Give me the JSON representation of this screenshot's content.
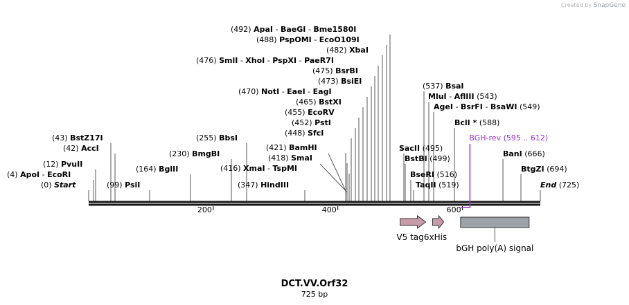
{
  "credit": {
    "created_by": "Created by",
    "brand": "SnapGene"
  },
  "sequence": {
    "name": "DCT.VV.Orf32",
    "length_label": "725 bp",
    "length": 725
  },
  "colors": {
    "backbone": "#1a1a1a",
    "feature_arrow": "#c99aa8",
    "polyA_box": "#9ea3aa",
    "primer": "#9b30d9"
  },
  "ticks": [
    {
      "pos": 200,
      "label": "200"
    },
    {
      "pos": 400,
      "label": "400"
    },
    {
      "pos": 600,
      "label": "600"
    }
  ],
  "sites": [
    {
      "row": 0,
      "parts": [
        {
          "n": "ApaI",
          "p": "(492)"
        },
        {
          "n": "BaeGI"
        },
        {
          "n": "Bme1580I"
        }
      ]
    },
    {
      "row": 1,
      "parts": [
        {
          "n": "PspOMI",
          "p": "(488)"
        },
        {
          "n": "EcoO109I"
        }
      ]
    },
    {
      "row": 2,
      "parts": [
        {
          "n": "XbaI",
          "p": "(482)"
        }
      ]
    },
    {
      "row": 3,
      "parts": [
        {
          "n": "SmlI",
          "p": "(476)"
        },
        {
          "n": "XhoI"
        },
        {
          "n": "PspXI"
        },
        {
          "n": "PaeR7I"
        }
      ]
    },
    {
      "row": 4,
      "parts": [
        {
          "n": "BsrBI",
          "p": "(475)"
        }
      ]
    },
    {
      "row": 5,
      "parts": [
        {
          "n": "BsiEI",
          "p": "(473)"
        }
      ]
    },
    {
      "row": 6,
      "parts": [
        {
          "n": "NotI",
          "p": "(470)"
        },
        {
          "n": "EaeI"
        },
        {
          "n": "EagI"
        }
      ]
    },
    {
      "row": 7,
      "parts": [
        {
          "n": "BstXI",
          "p": "(465)"
        }
      ]
    },
    {
      "row": 8,
      "parts": [
        {
          "n": "EcoRV",
          "p": "(455)"
        }
      ]
    },
    {
      "row": 9,
      "parts": [
        {
          "n": "PstI",
          "p": "(452)"
        }
      ]
    },
    {
      "row": 10,
      "parts": [
        {
          "n": "SfcI",
          "p": "(448)"
        }
      ]
    },
    {
      "row": 11,
      "parts": [
        {
          "n": "BamHI",
          "p": "(421)"
        }
      ]
    },
    {
      "row": 12,
      "parts": [
        {
          "n": "SmaI",
          "p": "(418)"
        }
      ]
    },
    {
      "row": 13,
      "parts": [
        {
          "n": "XmaI",
          "p": "(416)"
        },
        {
          "n": "TspMI"
        }
      ]
    },
    {
      "row": 14,
      "parts": [
        {
          "n": "HindIII",
          "p": "(347)"
        }
      ]
    },
    {
      "row": 15,
      "parts": [
        {
          "n": "BbsI",
          "p": "(255)"
        }
      ]
    },
    {
      "row": 16,
      "parts": [
        {
          "n": "BmgBI",
          "p": "(230)"
        }
      ]
    },
    {
      "row": 17,
      "parts": [
        {
          "n": "BglII",
          "p": "(164)"
        }
      ]
    },
    {
      "row": 18,
      "parts": [
        {
          "n": "PsiI",
          "p": "(99)"
        }
      ]
    },
    {
      "row": 19,
      "parts": [
        {
          "n": "BstZ17I",
          "p": "(43)"
        }
      ]
    },
    {
      "row": 20,
      "parts": [
        {
          "n": "AccI",
          "p": "(42)"
        }
      ]
    },
    {
      "row": 21,
      "parts": [
        {
          "n": "PvuII",
          "p": "(12)"
        }
      ]
    },
    {
      "row": 22,
      "parts": [
        {
          "n": "ApoI",
          "p": "(4)"
        },
        {
          "n": "EcoRI"
        }
      ]
    },
    {
      "row": 23,
      "parts": [
        {
          "n": "Start",
          "p": "(0)"
        }
      ]
    },
    {
      "row": 24,
      "parts": [
        {
          "n": "BsaI",
          "p": "(537)"
        }
      ]
    },
    {
      "row": 25,
      "parts": [
        {
          "n": "MluI",
          "p": ""
        },
        {
          "n": "AflIII"
        },
        {
          "n": "(543)"
        }
      ]
    },
    {
      "row": 26,
      "parts": [
        {
          "n": "AgeI",
          "p": ""
        },
        {
          "n": "BsrFI"
        },
        {
          "n": "BsaWI"
        },
        {
          "n": "(549)"
        }
      ]
    },
    {
      "row": 27,
      "parts": [
        {
          "n": "BclI *",
          "p": ""
        },
        {
          "n": "(588)"
        }
      ]
    },
    {
      "row": 28,
      "parts": [
        {
          "n": "SacII",
          "p": ""
        },
        {
          "n": "(495)"
        }
      ]
    },
    {
      "row": 29,
      "parts": [
        {
          "n": "BstBI",
          "p": ""
        },
        {
          "n": "(499)"
        }
      ]
    },
    {
      "row": 30,
      "parts": [
        {
          "n": "BseRI",
          "p": ""
        },
        {
          "n": "(516)"
        }
      ]
    },
    {
      "row": 31,
      "parts": [
        {
          "n": "TaqII",
          "p": ""
        },
        {
          "n": "(519)"
        }
      ]
    },
    {
      "row": 32,
      "parts": [
        {
          "n": "BanI",
          "p": ""
        },
        {
          "n": "(666)"
        }
      ]
    },
    {
      "row": 33,
      "parts": [
        {
          "n": "BtgZI",
          "p": ""
        },
        {
          "n": "(694)"
        }
      ]
    },
    {
      "row": 34,
      "parts": [
        {
          "n": "End",
          "p": ""
        },
        {
          "n": "(725)"
        }
      ]
    }
  ],
  "features": [
    {
      "name": "V5 tag",
      "start": 500,
      "end": 541
    },
    {
      "name": "6xHis",
      "start": 552,
      "end": 570
    },
    {
      "name": "bGH poly(A) signal",
      "start": 597,
      "end": 707
    }
  ],
  "primer": {
    "name": "BGH-rev",
    "range": "(595 .. 612)",
    "start": 595,
    "end": 612
  }
}
